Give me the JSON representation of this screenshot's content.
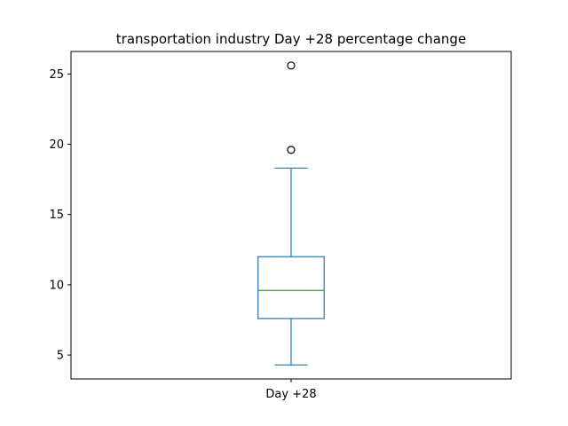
{
  "chart_data": {
    "type": "box",
    "title": "transportation industry Day +28 percentage change",
    "xlabel": "",
    "ylabel": "",
    "ylim": [
      3.3,
      26.6
    ],
    "yticks": [
      5,
      10,
      15,
      20,
      25
    ],
    "ytick_labels": [
      "5",
      "10",
      "15",
      "20",
      "25"
    ],
    "categories": [
      "Day +28"
    ],
    "boxes": [
      {
        "whisker_low": 4.3,
        "q1": 7.6,
        "median": 9.6,
        "q3": 12.0,
        "whisker_high": 18.3,
        "outliers": [
          19.6,
          25.6
        ]
      }
    ],
    "grid": false,
    "colors": {
      "box": "#1f77b4",
      "median": "#2ca02c",
      "outlier": "#000000",
      "axes": "#000000"
    }
  }
}
